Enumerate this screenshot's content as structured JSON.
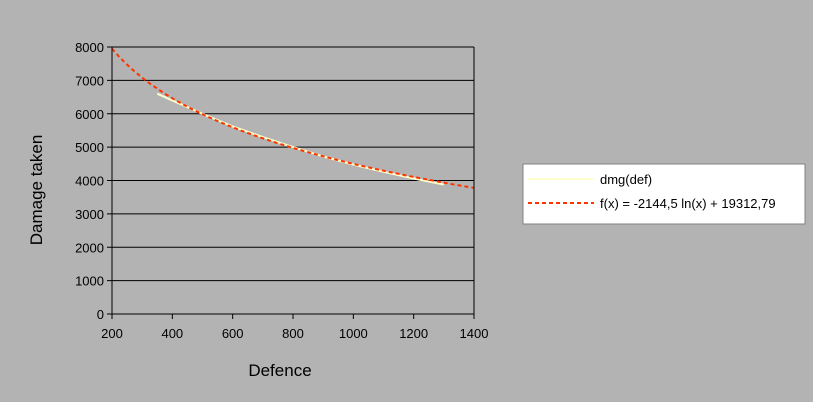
{
  "chart_data": {
    "type": "line",
    "title": "",
    "xlabel": "Defence",
    "ylabel": "Damage taken",
    "xlim": [
      200,
      1400
    ],
    "ylim": [
      0,
      8000
    ],
    "xticks": [
      200,
      400,
      600,
      800,
      1000,
      1200,
      1400
    ],
    "yticks": [
      0,
      1000,
      2000,
      3000,
      4000,
      5000,
      6000,
      7000,
      8000
    ],
    "grid": "horizontal",
    "legend_position": "right",
    "series": [
      {
        "name": "dmg(def)",
        "kind": "data",
        "color": "#ffffcc",
        "x": [
          350,
          400,
          500,
          600,
          700,
          800,
          900,
          1000,
          1100,
          1200,
          1300
        ],
        "y": [
          6600,
          6400,
          6000,
          5620,
          5300,
          5000,
          4720,
          4480,
          4260,
          4060,
          3880
        ]
      },
      {
        "name": "f(x) = -2144,5 ln(x) + 19312,79",
        "kind": "trendline",
        "color": "#ff3300",
        "a": -2144.5,
        "b": 19312.79,
        "x_range": [
          200,
          1400
        ]
      }
    ]
  }
}
